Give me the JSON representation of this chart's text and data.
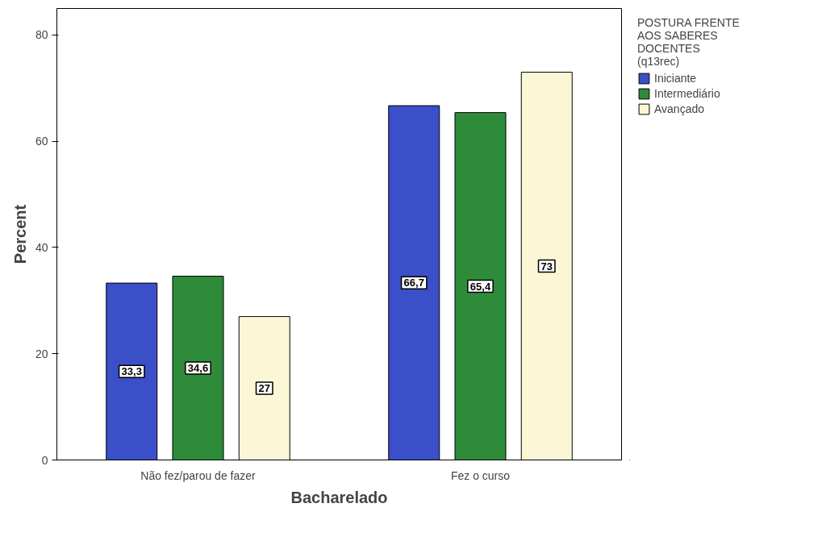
{
  "chart_data": {
    "type": "bar",
    "xlabel": "Bacharelado",
    "ylabel": "Percent",
    "legend_title": "POSTURA FRENTE AOS SABERES DOCENTES (q13rec)",
    "legend": "right",
    "grid": false,
    "categories": [
      "Não fez/parou de fazer",
      "Fez o curso"
    ],
    "ylim": [
      0,
      85
    ],
    "yticks": [
      0,
      20,
      40,
      60,
      80
    ],
    "series": [
      {
        "name": "Iniciante",
        "color": "#3a4fc8",
        "values": [
          33.3,
          66.7
        ],
        "value_labels": [
          "33,3",
          "66,7"
        ]
      },
      {
        "name": "Intermediário",
        "color": "#2e8b3a",
        "values": [
          34.6,
          65.4
        ],
        "value_labels": [
          "34,6",
          "65,4"
        ]
      },
      {
        "name": "Avançado",
        "color": "#fbf7d6",
        "values": [
          27,
          73
        ],
        "value_labels": [
          "27",
          "73"
        ]
      }
    ]
  }
}
